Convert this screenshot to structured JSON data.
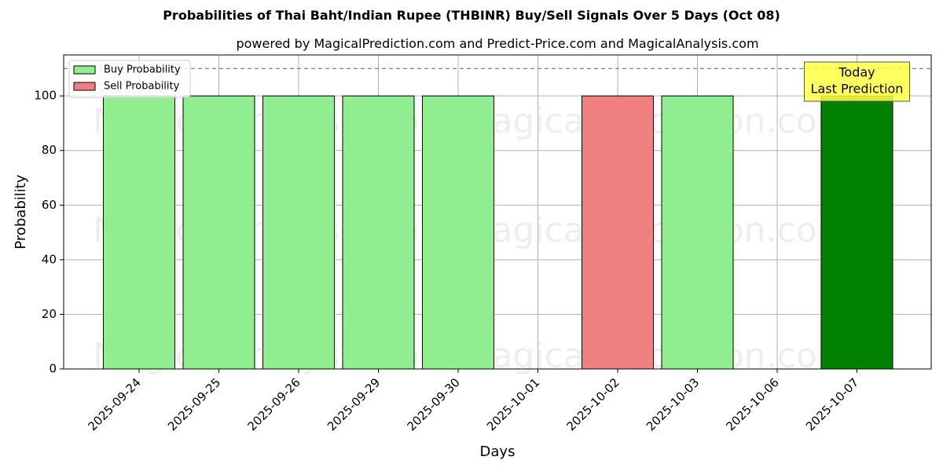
{
  "chart_data": {
    "type": "bar",
    "title": "Probabilities of Thai Baht/Indian Rupee (THBINR) Buy/Sell Signals Over 5 Days (Oct 08)",
    "subtitle": "powered by MagicalPrediction.com and Predict-Price.com and MagicalAnalysis.com",
    "xlabel": "Days",
    "ylabel": "Probability",
    "ylim": [
      0,
      115
    ],
    "yticks": [
      0,
      20,
      40,
      60,
      80,
      100
    ],
    "categories": [
      "2025-09-24",
      "2025-09-25",
      "2025-09-26",
      "2025-09-29",
      "2025-09-30",
      "2025-10-01",
      "2025-10-02",
      "2025-10-03",
      "2025-10-06",
      "2025-10-07"
    ],
    "series": [
      {
        "name": "Buy Probability",
        "values": [
          100,
          100,
          100,
          100,
          100,
          null,
          null,
          100,
          null,
          100
        ]
      },
      {
        "name": "Sell Probability",
        "values": [
          null,
          null,
          null,
          null,
          null,
          null,
          100,
          null,
          null,
          null
        ]
      }
    ],
    "highlight": {
      "category": "2025-10-07",
      "label_lines": [
        "Today",
        "Last Prediction"
      ],
      "color": "#008000"
    },
    "reference_line": {
      "y": 110,
      "style": "dashed"
    },
    "legend_position": "top-left",
    "grid": true,
    "watermarks": [
      "MagicalAnalysis.com",
      "MagicalPrediction.com"
    ],
    "colors": {
      "buy": "#90ee90",
      "sell": "#f08080",
      "today": "#008000",
      "annotation_bg": "#ffff44"
    }
  }
}
